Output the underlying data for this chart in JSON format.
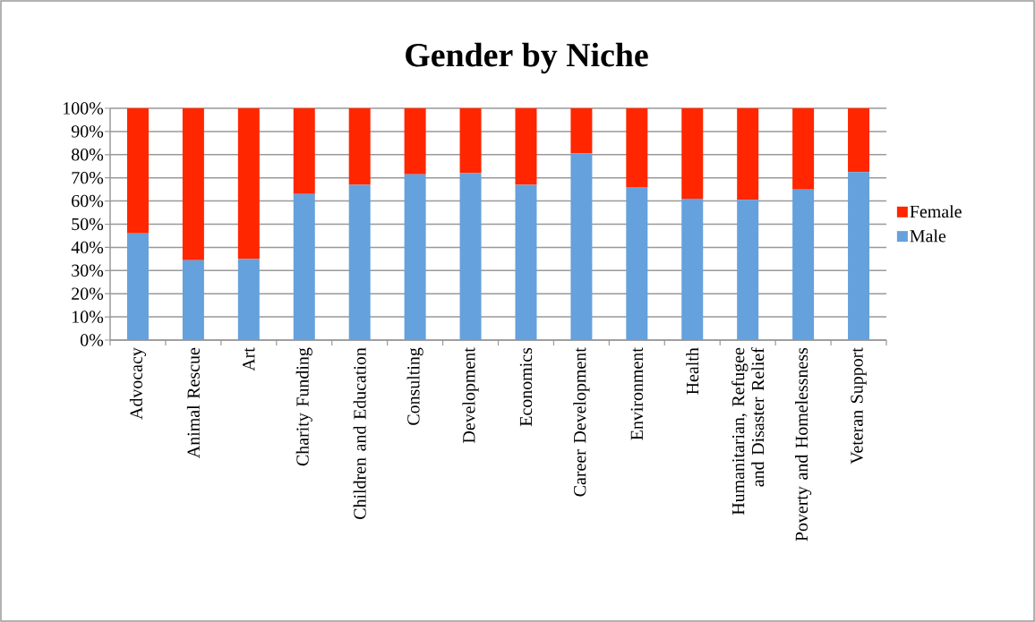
{
  "chart_data": {
    "type": "bar",
    "title": "Gender by Niche",
    "stacked": true,
    "categories": [
      "Advocacy",
      "Animal Rescue",
      "Art",
      "Charity Funding",
      "Children and Education",
      "Consulting",
      "Development",
      "Economics",
      "Career Development",
      "Environment",
      "Health",
      "Humanitarian, Refugee and Disaster Relief",
      "Poverty and Homelessness",
      "Veteran Support"
    ],
    "series": [
      {
        "name": "Male",
        "color": "#65a1dc",
        "values": [
          46,
          34.5,
          35,
          63,
          67,
          71.5,
          72,
          67,
          80.5,
          66,
          61,
          60.5,
          65,
          72.5
        ]
      },
      {
        "name": "Female",
        "color": "#ff2600",
        "values": [
          54,
          65.5,
          65,
          37,
          33,
          28.5,
          28,
          33,
          19.5,
          34,
          39,
          39.5,
          35,
          27.5
        ]
      }
    ],
    "ylim": [
      0,
      100
    ],
    "yticks": [
      {
        "value": 0,
        "label": "0%"
      },
      {
        "value": 10,
        "label": "10%"
      },
      {
        "value": 20,
        "label": "20%"
      },
      {
        "value": 30,
        "label": "30%"
      },
      {
        "value": 40,
        "label": "40%"
      },
      {
        "value": 50,
        "label": "50%"
      },
      {
        "value": 60,
        "label": "60%"
      },
      {
        "value": 70,
        "label": "70%"
      },
      {
        "value": 80,
        "label": "80%"
      },
      {
        "value": 90,
        "label": "90%"
      },
      {
        "value": 100,
        "label": "100%"
      }
    ],
    "grid": "y",
    "legend": "right"
  }
}
